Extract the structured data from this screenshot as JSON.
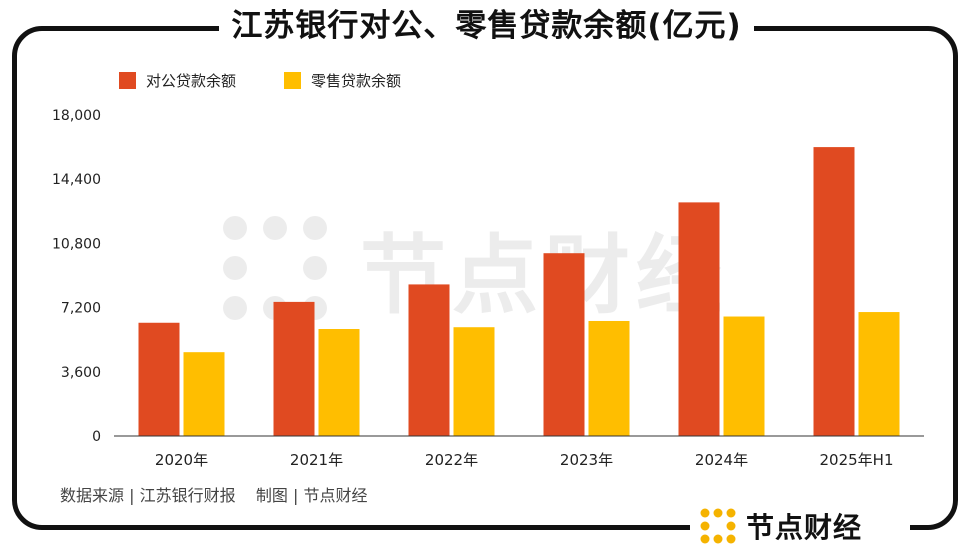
{
  "title": "江苏银行对公、零售贷款余额(亿元)",
  "source": "数据来源 | 江苏银行财报    制图 | 节点财经",
  "brand": {
    "name": "节点财经",
    "icon": "dot-grid-logo-icon",
    "color": "#F5B300"
  },
  "watermark": {
    "text": "节点财经"
  },
  "chart_data": {
    "type": "bar",
    "categories": [
      "2020年",
      "2021年",
      "2022年",
      "2023年",
      "2024年",
      "2025年H1"
    ],
    "series": [
      {
        "name": "对公贷款余额",
        "color": "#E04A21",
        "values": [
          6350,
          7520,
          8500,
          10250,
          13100,
          16200
        ]
      },
      {
        "name": "零售贷款余额",
        "color": "#FFBE00",
        "values": [
          4700,
          6000,
          6100,
          6450,
          6700,
          6950
        ]
      }
    ],
    "y_ticks": [
      "0",
      "3,600",
      "7,200",
      "10,800",
      "14,400",
      "18,000"
    ],
    "ylim": [
      0,
      18000
    ],
    "grid": false,
    "legend": "top-left"
  }
}
